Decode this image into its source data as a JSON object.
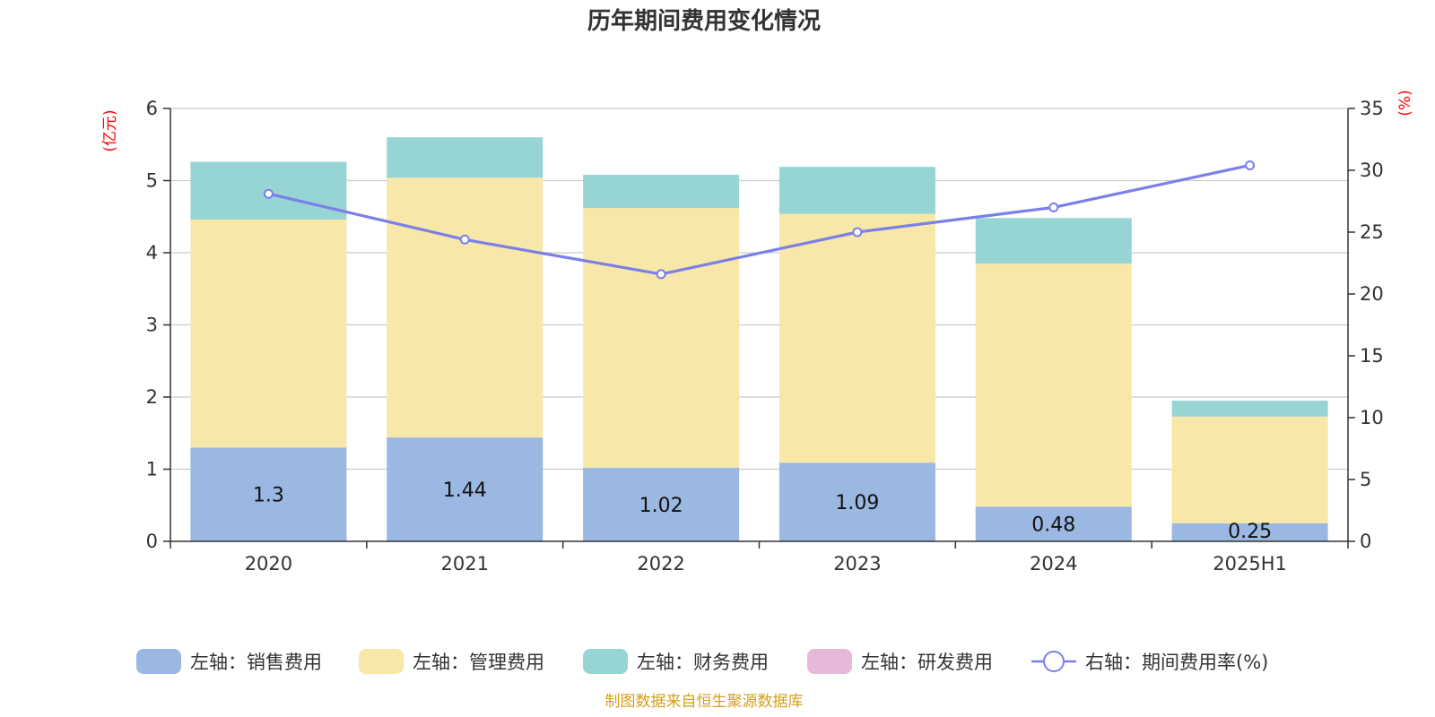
{
  "chart_data": {
    "type": "bar",
    "title": "历年期间费用变化情况",
    "categories": [
      "2020",
      "2021",
      "2022",
      "2023",
      "2024",
      "2025H1"
    ],
    "left_axis": {
      "unit_label": "(亿元)",
      "ylim": [
        0,
        6
      ],
      "ticks": [
        0,
        1,
        2,
        3,
        4,
        5,
        6
      ]
    },
    "right_axis": {
      "unit_label": "(%)",
      "ylim": [
        0,
        35
      ],
      "ticks": [
        0,
        5,
        10,
        15,
        20,
        25,
        30,
        35
      ]
    },
    "grid": true,
    "stacked": true,
    "series": [
      {
        "name": "左轴：销售费用",
        "axis": "left",
        "type": "bar",
        "color": "#9bb8e2",
        "values": [
          1.3,
          1.44,
          1.02,
          1.09,
          0.48,
          0.25
        ],
        "show_labels": true
      },
      {
        "name": "左轴：管理费用",
        "axis": "left",
        "type": "bar",
        "color": "#f7e7a9",
        "values": [
          3.16,
          3.6,
          3.6,
          3.45,
          3.37,
          1.48
        ]
      },
      {
        "name": "左轴：财务费用",
        "axis": "left",
        "type": "bar",
        "color": "#97d4d4",
        "values": [
          0.8,
          0.56,
          0.46,
          0.65,
          0.63,
          0.22
        ]
      },
      {
        "name": "左轴：研发费用",
        "axis": "left",
        "type": "bar",
        "color": "#e8b8d9",
        "values": [
          0,
          0,
          0,
          0,
          0,
          0
        ]
      },
      {
        "name": "右轴：期间费用率(%)",
        "axis": "right",
        "type": "line",
        "color": "#7b7fe8",
        "values": [
          28.1,
          24.4,
          21.6,
          25.0,
          27.0,
          30.4
        ]
      }
    ],
    "legend_position": "bottom",
    "source": "制图数据来自恒生聚源数据库"
  }
}
